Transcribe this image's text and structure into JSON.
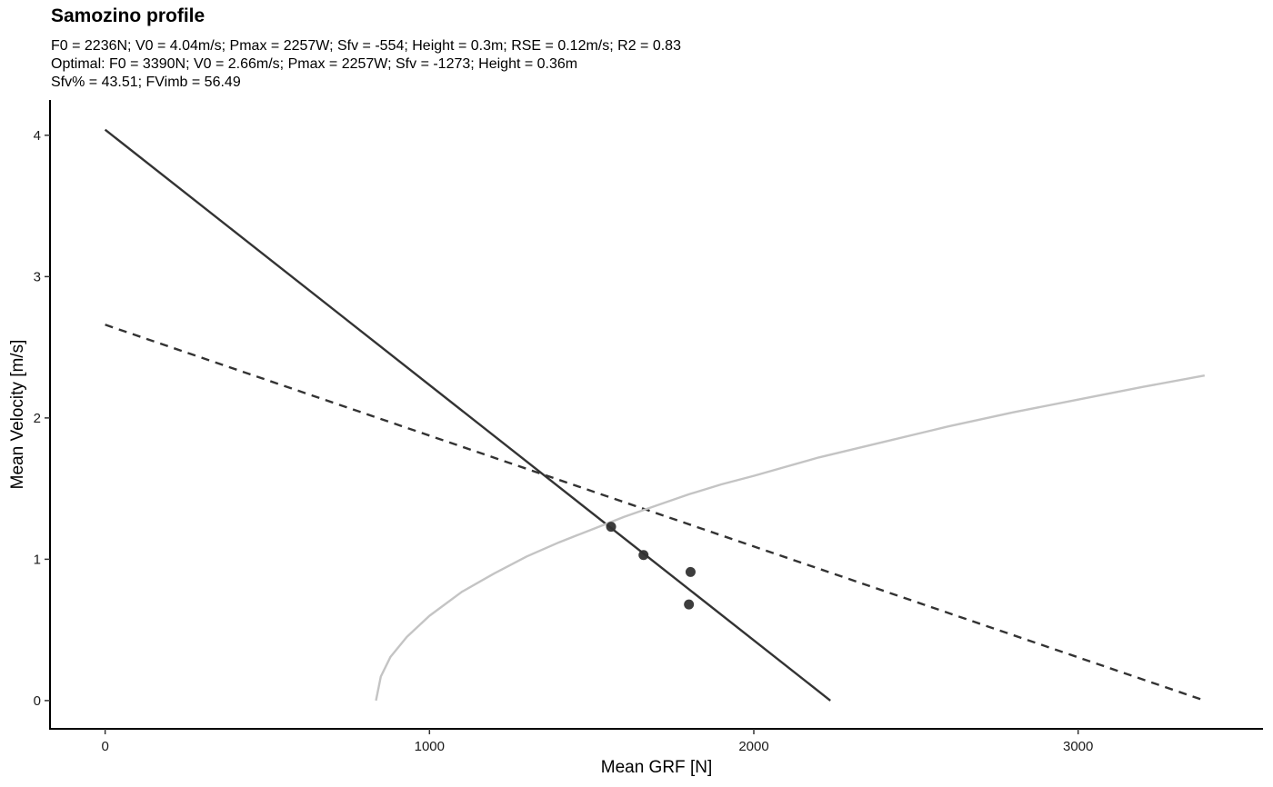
{
  "chart_data": {
    "type": "line",
    "title": "Samozino profile",
    "subtitle_lines": [
      "F0 = 2236N; V0 = 4.04m/s; Pmax = 2257W; Sfv = -554; Height = 0.3m; RSE = 0.12m/s; R2 = 0.83",
      "Optimal: F0 = 3390N; V0 = 2.66m/s; Pmax = 2257W; Sfv = -1273; Height = 0.36m",
      "Sfv% = 43.51; FVimb = 56.49"
    ],
    "xlabel": "Mean GRF [N]",
    "ylabel": "Mean Velocity [m/s]",
    "xlim": [
      -170,
      3570
    ],
    "ylim": [
      -0.2,
      4.25
    ],
    "x_ticks": [
      0,
      1000,
      2000,
      3000
    ],
    "x_tick_labels": [
      "0",
      "1000",
      "2000",
      "3000"
    ],
    "y_ticks": [
      0,
      1,
      2,
      3,
      4
    ],
    "y_tick_labels": [
      "0",
      "1",
      "2",
      "3",
      "4"
    ],
    "grid": false,
    "series": [
      {
        "style": "solid",
        "color": "#333333",
        "x": [
          0,
          2236
        ],
        "y": [
          4.04,
          0
        ]
      },
      {
        "style": "dashed",
        "color": "#333333",
        "x": [
          0,
          3390
        ],
        "y": [
          2.66,
          0
        ]
      },
      {
        "style": "curve",
        "color": "#c4c4c4",
        "x": [
          835,
          850,
          880,
          930,
          1000,
          1100,
          1200,
          1300,
          1400,
          1500,
          1600,
          1700,
          1800,
          1900,
          2000,
          2200,
          2400,
          2600,
          2800,
          3000,
          3200,
          3390
        ],
        "y": [
          0,
          0.17,
          0.31,
          0.45,
          0.6,
          0.77,
          0.9,
          1.02,
          1.12,
          1.21,
          1.3,
          1.38,
          1.46,
          1.53,
          1.59,
          1.72,
          1.83,
          1.94,
          2.04,
          2.13,
          2.22,
          2.3
        ]
      },
      {
        "style": "points",
        "color": "#333333",
        "x": [
          1560,
          1660,
          1800,
          1805
        ],
        "y": [
          1.23,
          1.03,
          0.68,
          0.91
        ]
      }
    ]
  }
}
